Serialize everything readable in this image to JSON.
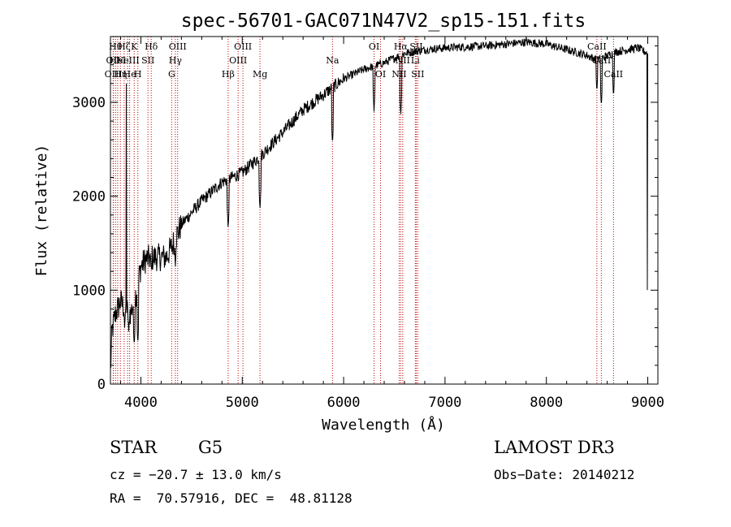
{
  "chart_data": {
    "type": "line",
    "title": "spec-56701-GAC071N47V2_sp15-151.fits",
    "xlabel": "Wavelength (Å)",
    "ylabel": "Flux (relative)",
    "xlim": [
      3700,
      9100
    ],
    "ylim": [
      0,
      3700
    ],
    "xticks": [
      4000,
      5000,
      6000,
      7000,
      8000,
      9000
    ],
    "yticks": [
      0,
      1000,
      2000,
      3000
    ],
    "line_color": "#000000",
    "marker_color": "#c00000",
    "continuum": [
      {
        "x": 3700,
        "y": 120
      },
      {
        "x": 3715,
        "y": 560
      },
      {
        "x": 3750,
        "y": 750
      },
      {
        "x": 3800,
        "y": 880
      },
      {
        "x": 3850,
        "y": 780
      },
      {
        "x": 3900,
        "y": 760
      },
      {
        "x": 3950,
        "y": 960
      },
      {
        "x": 4000,
        "y": 1250
      },
      {
        "x": 4050,
        "y": 1330
      },
      {
        "x": 4150,
        "y": 1350
      },
      {
        "x": 4250,
        "y": 1350
      },
      {
        "x": 4300,
        "y": 1450
      },
      {
        "x": 4400,
        "y": 1700
      },
      {
        "x": 4600,
        "y": 1950
      },
      {
        "x": 4800,
        "y": 2150
      },
      {
        "x": 5000,
        "y": 2250
      },
      {
        "x": 5200,
        "y": 2450
      },
      {
        "x": 5400,
        "y": 2680
      },
      {
        "x": 5600,
        "y": 2920
      },
      {
        "x": 5800,
        "y": 3080
      },
      {
        "x": 6000,
        "y": 3250
      },
      {
        "x": 6200,
        "y": 3350
      },
      {
        "x": 6400,
        "y": 3420
      },
      {
        "x": 6600,
        "y": 3520
      },
      {
        "x": 6800,
        "y": 3560
      },
      {
        "x": 7000,
        "y": 3580
      },
      {
        "x": 7400,
        "y": 3600
      },
      {
        "x": 7800,
        "y": 3640
      },
      {
        "x": 8000,
        "y": 3620
      },
      {
        "x": 8200,
        "y": 3560
      },
      {
        "x": 8400,
        "y": 3500
      },
      {
        "x": 8500,
        "y": 3450
      },
      {
        "x": 8700,
        "y": 3540
      },
      {
        "x": 8900,
        "y": 3580
      },
      {
        "x": 9000,
        "y": 3520
      }
    ],
    "absorption_features": [
      {
        "x": 3840,
        "y": 600
      },
      {
        "x": 3880,
        "y": 560
      },
      {
        "x": 3934,
        "y": 400
      },
      {
        "x": 3970,
        "y": 420
      },
      {
        "x": 4102,
        "y": 1200
      },
      {
        "x": 4340,
        "y": 1250
      },
      {
        "x": 4861,
        "y": 1650
      },
      {
        "x": 5175,
        "y": 1850
      },
      {
        "x": 5890,
        "y": 2550
      },
      {
        "x": 6300,
        "y": 2900
      },
      {
        "x": 6563,
        "y": 2850
      },
      {
        "x": 8498,
        "y": 3100
      },
      {
        "x": 8542,
        "y": 2950
      },
      {
        "x": 8662,
        "y": 3050
      }
    ],
    "spike_features": [
      {
        "x": 3855,
        "y": 3200
      },
      {
        "x": 8995,
        "y": 1000
      }
    ],
    "line_markers": [
      {
        "x": 3727,
        "label": "OII",
        "row": 1
      },
      {
        "x": 3729,
        "label": "OIII",
        "row": 2
      },
      {
        "x": 3750,
        "label": "Hθ",
        "row": 0
      },
      {
        "x": 3771,
        "label": "HeI",
        "row": 1
      },
      {
        "x": 3798,
        "label": "Hη",
        "row": 2
      },
      {
        "x": 3835,
        "label": "Hζ",
        "row": 0
      },
      {
        "x": 3869,
        "label": "NeIII",
        "row": 1
      },
      {
        "x": 3889,
        "label": "He",
        "row": 2
      },
      {
        "x": 3934,
        "label": "K",
        "row": 0
      },
      {
        "x": 3970,
        "label": "H",
        "row": 2
      },
      {
        "x": 4070,
        "label": "SII",
        "row": 1
      },
      {
        "x": 4102,
        "label": "Hδ",
        "row": 0
      },
      {
        "x": 4304,
        "label": "G",
        "row": 2
      },
      {
        "x": 4340,
        "label": "Hγ",
        "row": 1
      },
      {
        "x": 4363,
        "label": "OIII",
        "row": 0
      },
      {
        "x": 4861,
        "label": "Hβ",
        "row": 2
      },
      {
        "x": 4959,
        "label": "OIII",
        "row": 1
      },
      {
        "x": 5007,
        "label": "OIII",
        "row": 0
      },
      {
        "x": 5175,
        "label": "Mg",
        "row": 2
      },
      {
        "x": 5890,
        "label": "Na",
        "row": 1
      },
      {
        "x": 6300,
        "label": "OI",
        "row": 0
      },
      {
        "x": 6364,
        "label": "OI",
        "row": 2
      },
      {
        "x": 6548,
        "label": "NII",
        "row": 2
      },
      {
        "x": 6563,
        "label": "Hα",
        "row": 0
      },
      {
        "x": 6583,
        "label": "NII",
        "row": 1
      },
      {
        "x": 6707,
        "label": "Li",
        "row": 1
      },
      {
        "x": 6716,
        "label": "SII",
        "row": 0
      },
      {
        "x": 6731,
        "label": "SII",
        "row": 2
      },
      {
        "x": 8498,
        "label": "CaII",
        "row": 0
      },
      {
        "x": 8542,
        "label": "CaII",
        "row": 1
      },
      {
        "x": 8662,
        "label": "CaII",
        "row": 2
      }
    ]
  },
  "info": {
    "object_class": "STAR",
    "subclass": "G5",
    "survey": "LAMOST DR3",
    "cz": "cz = −20.7 ± 13.0 km/s",
    "obs_date": "Obs−Date: 20140212",
    "coords": "RA =  70.57916, DEC =  48.81128"
  }
}
